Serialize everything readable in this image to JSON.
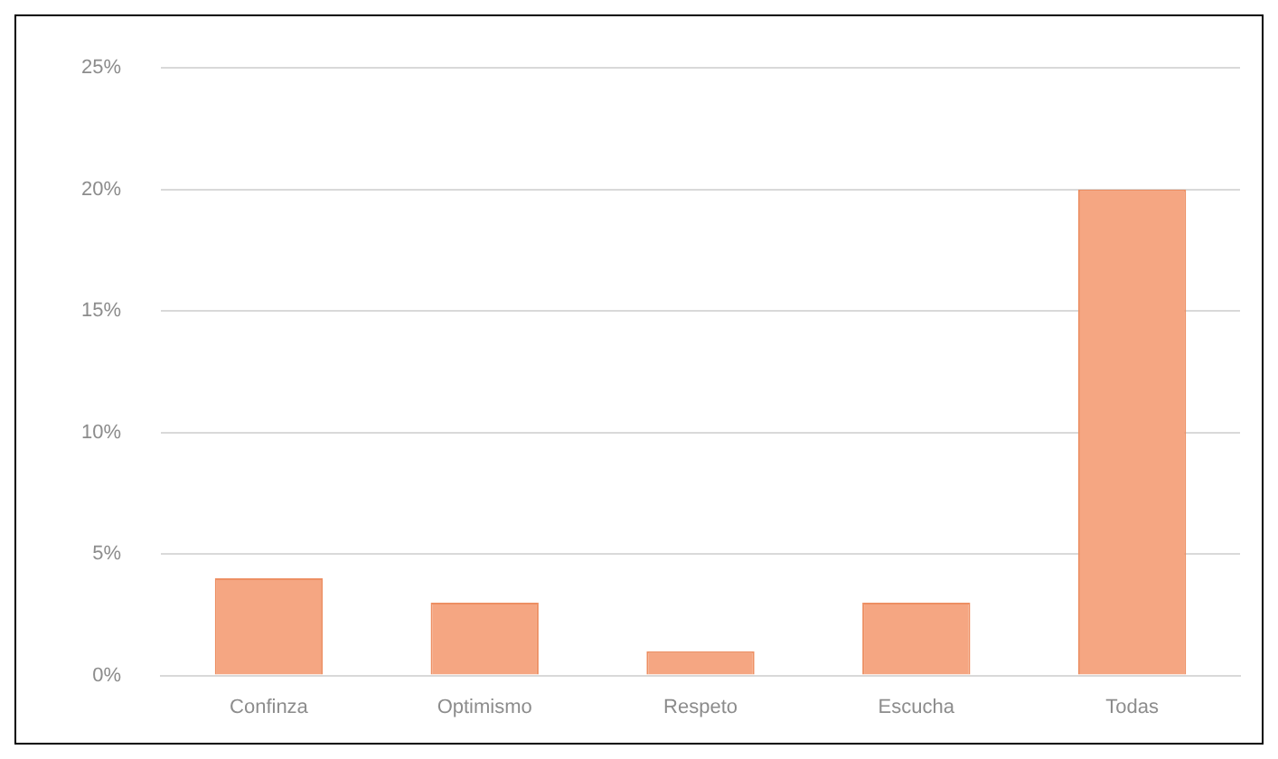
{
  "chart_data": {
    "type": "bar",
    "categories": [
      "Confinza",
      "Optimismo",
      "Respeto",
      "Escucha",
      "Todas"
    ],
    "values": [
      4,
      3,
      1,
      3,
      20
    ],
    "color": "#f5a682",
    "ylim": [
      0,
      25
    ],
    "yticks": [
      {
        "value": 0,
        "label": "0%"
      },
      {
        "value": 5,
        "label": "5%"
      },
      {
        "value": 10,
        "label": "10%"
      },
      {
        "value": 15,
        "label": "15%"
      },
      {
        "value": 20,
        "label": "20%"
      },
      {
        "value": 25,
        "label": "25%"
      }
    ],
    "grid": "y"
  }
}
